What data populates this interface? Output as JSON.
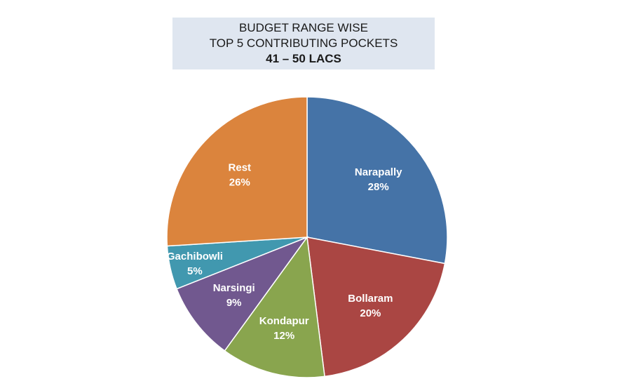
{
  "chart_data": {
    "type": "pie",
    "title": [
      "BUDGET RANGE WISE",
      "TOP 5 CONTRIBUTING POCKETS",
      "41 – 50 LACS"
    ],
    "slices": [
      {
        "label": "Narapally",
        "value": 28,
        "value_label": "28%",
        "color": "#4573a7"
      },
      {
        "label": "Bollaram",
        "value": 20,
        "value_label": "20%",
        "color": "#aa4643"
      },
      {
        "label": "Kondapur",
        "value": 12,
        "value_label": "12%",
        "color": "#89a54e"
      },
      {
        "label": "Narsingi",
        "value": 9,
        "value_label": "9%",
        "color": "#71588f"
      },
      {
        "label": "Gachibowli",
        "value": 5,
        "value_label": "5%",
        "color": "#4198af"
      },
      {
        "label": "Rest",
        "value": 26,
        "value_label": "26%",
        "color": "#db843d"
      }
    ],
    "legend": "none"
  }
}
